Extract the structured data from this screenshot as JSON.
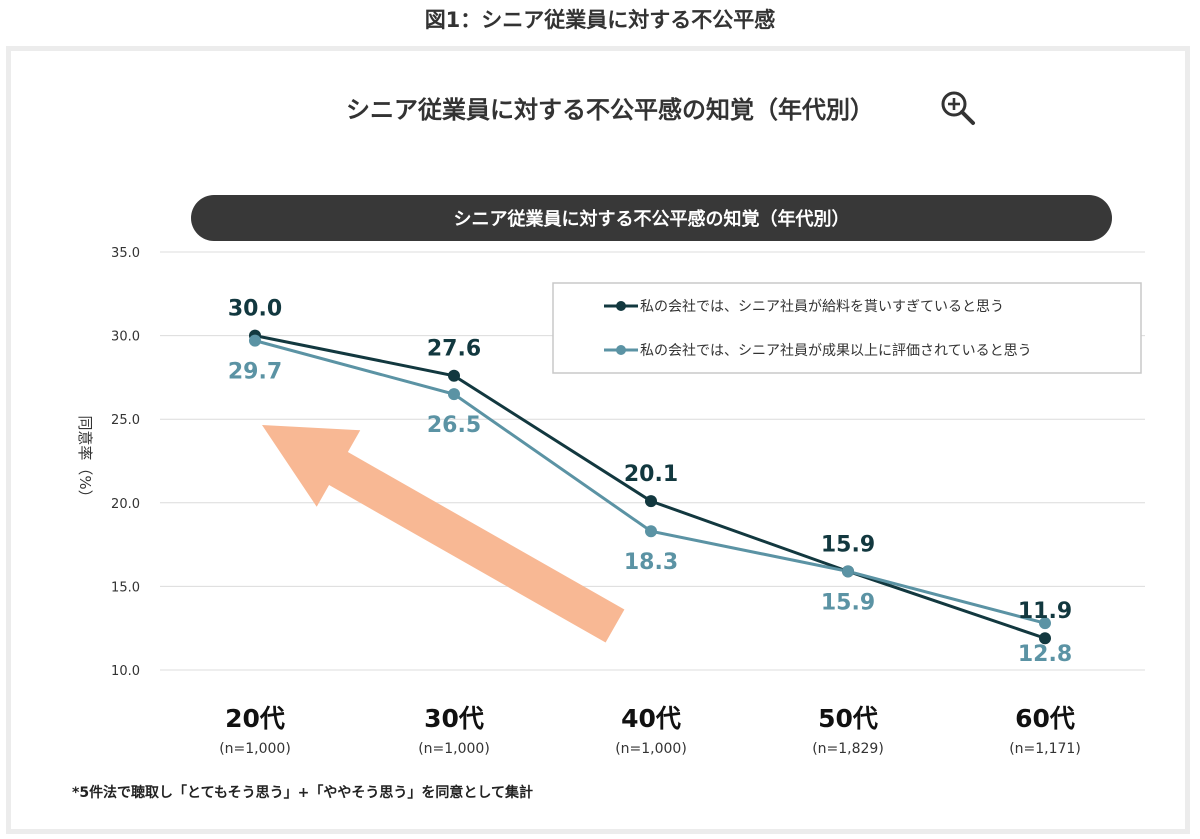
{
  "figure_caption": "図1：シニア従業員に対する不公平感",
  "main_title": "シニア従業員に対する不公平感の知覚（年代別）",
  "icons": {
    "zoom": "zoom-in-icon"
  },
  "colors": {
    "series1": "#12383f",
    "series2": "#5b93a4",
    "arrow": "#f8b894",
    "pill": "#383838"
  },
  "footnote": "*5件法で聴取し「とてもそう思う」+「ややそう思う」を同意として集計",
  "chart_data": {
    "type": "line",
    "title": "シニア従業員に対する不公平感の知覚（年代別）",
    "ylabel": "同意率（%）",
    "xlabel": "",
    "ylim": [
      10,
      35
    ],
    "yticks": [
      10,
      15,
      20,
      25,
      30,
      35
    ],
    "ytick_labels": [
      "10.0",
      "15.0",
      "20.0",
      "25.0",
      "30.0",
      "35.0"
    ],
    "categories": [
      "20代",
      "30代",
      "40代",
      "50代",
      "60代"
    ],
    "sample_sizes": [
      "(n=1,000)",
      "(n=1,000)",
      "(n=1,000)",
      "(n=1,829)",
      "(n=1,171)"
    ],
    "legend_position": "top-right",
    "grid": "horizontal",
    "series": [
      {
        "name": "私の会社では、シニア社員が給料を貰いすぎていると思う",
        "values": [
          30.0,
          27.6,
          20.1,
          15.9,
          11.9
        ],
        "labels": [
          "30.0",
          "27.6",
          "20.1",
          "15.9",
          "11.9"
        ],
        "color": "#12383f"
      },
      {
        "name": "私の会社では、シニア社員が成果以上に評価されていると思う",
        "values": [
          29.7,
          26.5,
          18.3,
          15.9,
          12.8
        ],
        "labels": [
          "29.7",
          "26.5",
          "18.3",
          "15.9",
          "12.8"
        ],
        "color": "#5b93a4"
      }
    ]
  }
}
